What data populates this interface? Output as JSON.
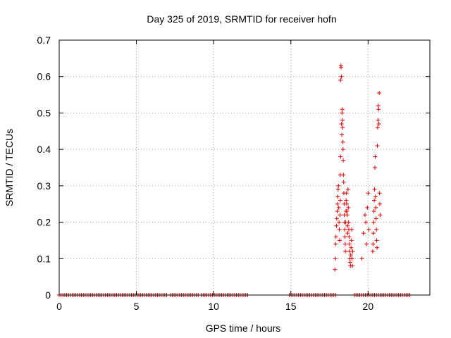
{
  "chart_data": {
    "type": "scatter",
    "title": "Day 325 of 2019, SRMTID for receiver hofn",
    "xlabel": "GPS time / hours",
    "ylabel": "SRMTID / TECUs",
    "xlim": [
      0,
      24
    ],
    "ylim": [
      0,
      0.7
    ],
    "xticks": [
      0,
      5,
      10,
      15,
      20
    ],
    "yticks": [
      0,
      0.1,
      0.2,
      0.3,
      0.4,
      0.5,
      0.6,
      0.7
    ],
    "xtick_labels": [
      "0",
      "5",
      "10",
      "15",
      "20"
    ],
    "ytick_labels": [
      "0",
      "0.1",
      "0.2",
      "0.3",
      "0.4",
      "0.5",
      "0.6",
      "0.7"
    ],
    "grid": true,
    "marker": "plus",
    "series_color": "#dd0000",
    "zero_segments": [
      [
        0.0,
        7.0
      ],
      [
        7.2,
        9.0
      ],
      [
        9.2,
        12.3
      ],
      [
        14.9,
        17.9
      ],
      [
        19.1,
        22.8
      ]
    ],
    "zero_step": 0.12,
    "points": [
      [
        17.85,
        0.07
      ],
      [
        17.88,
        0.1
      ],
      [
        17.9,
        0.14
      ],
      [
        17.92,
        0.16
      ],
      [
        17.95,
        0.19
      ],
      [
        17.97,
        0.21
      ],
      [
        18.0,
        0.23
      ],
      [
        18.02,
        0.25
      ],
      [
        18.04,
        0.27
      ],
      [
        18.06,
        0.29
      ],
      [
        18.08,
        0.3
      ],
      [
        18.1,
        0.24
      ],
      [
        18.12,
        0.2
      ],
      [
        18.14,
        0.18
      ],
      [
        18.16,
        0.15
      ],
      [
        18.18,
        0.22
      ],
      [
        18.2,
        0.26
      ],
      [
        18.2,
        0.33
      ],
      [
        18.22,
        0.38
      ],
      [
        18.22,
        0.59
      ],
      [
        18.24,
        0.63
      ],
      [
        18.25,
        0.625
      ],
      [
        18.27,
        0.6
      ],
      [
        18.28,
        0.47
      ],
      [
        18.3,
        0.44
      ],
      [
        18.31,
        0.5
      ],
      [
        18.33,
        0.51
      ],
      [
        18.34,
        0.48
      ],
      [
        18.35,
        0.46
      ],
      [
        18.37,
        0.42
      ],
      [
        18.38,
        0.4
      ],
      [
        18.39,
        0.37
      ],
      [
        18.4,
        0.33
      ],
      [
        18.42,
        0.31
      ],
      [
        18.43,
        0.28
      ],
      [
        18.45,
        0.25
      ],
      [
        18.46,
        0.22
      ],
      [
        18.47,
        0.2
      ],
      [
        18.49,
        0.18
      ],
      [
        18.5,
        0.16
      ],
      [
        18.52,
        0.14
      ],
      [
        18.53,
        0.12
      ],
      [
        18.55,
        0.2
      ],
      [
        18.57,
        0.23
      ],
      [
        18.58,
        0.26
      ],
      [
        18.6,
        0.28
      ],
      [
        18.62,
        0.25
      ],
      [
        18.63,
        0.23
      ],
      [
        18.65,
        0.22
      ],
      [
        18.67,
        0.19
      ],
      [
        18.68,
        0.17
      ],
      [
        18.7,
        0.29
      ],
      [
        18.72,
        0.24
      ],
      [
        18.74,
        0.2
      ],
      [
        18.75,
        0.18
      ],
      [
        18.77,
        0.16
      ],
      [
        18.79,
        0.14
      ],
      [
        18.8,
        0.12
      ],
      [
        18.82,
        0.1
      ],
      [
        18.84,
        0.09
      ],
      [
        18.86,
        0.08
      ],
      [
        18.88,
        0.11
      ],
      [
        18.9,
        0.13
      ],
      [
        18.92,
        0.15
      ],
      [
        18.94,
        0.18
      ],
      [
        18.96,
        0.1
      ],
      [
        18.98,
        0.08
      ],
      [
        19.0,
        0.12
      ],
      [
        19.6,
        0.1
      ],
      [
        19.7,
        0.17
      ],
      [
        19.8,
        0.22
      ],
      [
        19.85,
        0.2
      ],
      [
        19.9,
        0.14
      ],
      [
        19.95,
        0.24
      ],
      [
        20.0,
        0.28
      ],
      [
        20.05,
        0.18
      ],
      [
        20.3,
        0.12
      ],
      [
        20.32,
        0.14
      ],
      [
        20.34,
        0.17
      ],
      [
        20.36,
        0.2
      ],
      [
        20.38,
        0.23
      ],
      [
        20.4,
        0.26
      ],
      [
        20.42,
        0.29
      ],
      [
        20.44,
        0.35
      ],
      [
        20.46,
        0.38
      ],
      [
        20.48,
        0.27
      ],
      [
        20.5,
        0.24
      ],
      [
        20.52,
        0.21
      ],
      [
        20.54,
        0.18
      ],
      [
        20.56,
        0.15
      ],
      [
        20.58,
        0.13
      ],
      [
        20.6,
        0.41
      ],
      [
        20.62,
        0.46
      ],
      [
        20.64,
        0.48
      ],
      [
        20.66,
        0.52
      ],
      [
        20.68,
        0.51
      ],
      [
        20.7,
        0.47
      ],
      [
        20.72,
        0.555
      ],
      [
        20.74,
        0.28
      ],
      [
        20.76,
        0.25
      ],
      [
        20.78,
        0.22
      ]
    ]
  }
}
